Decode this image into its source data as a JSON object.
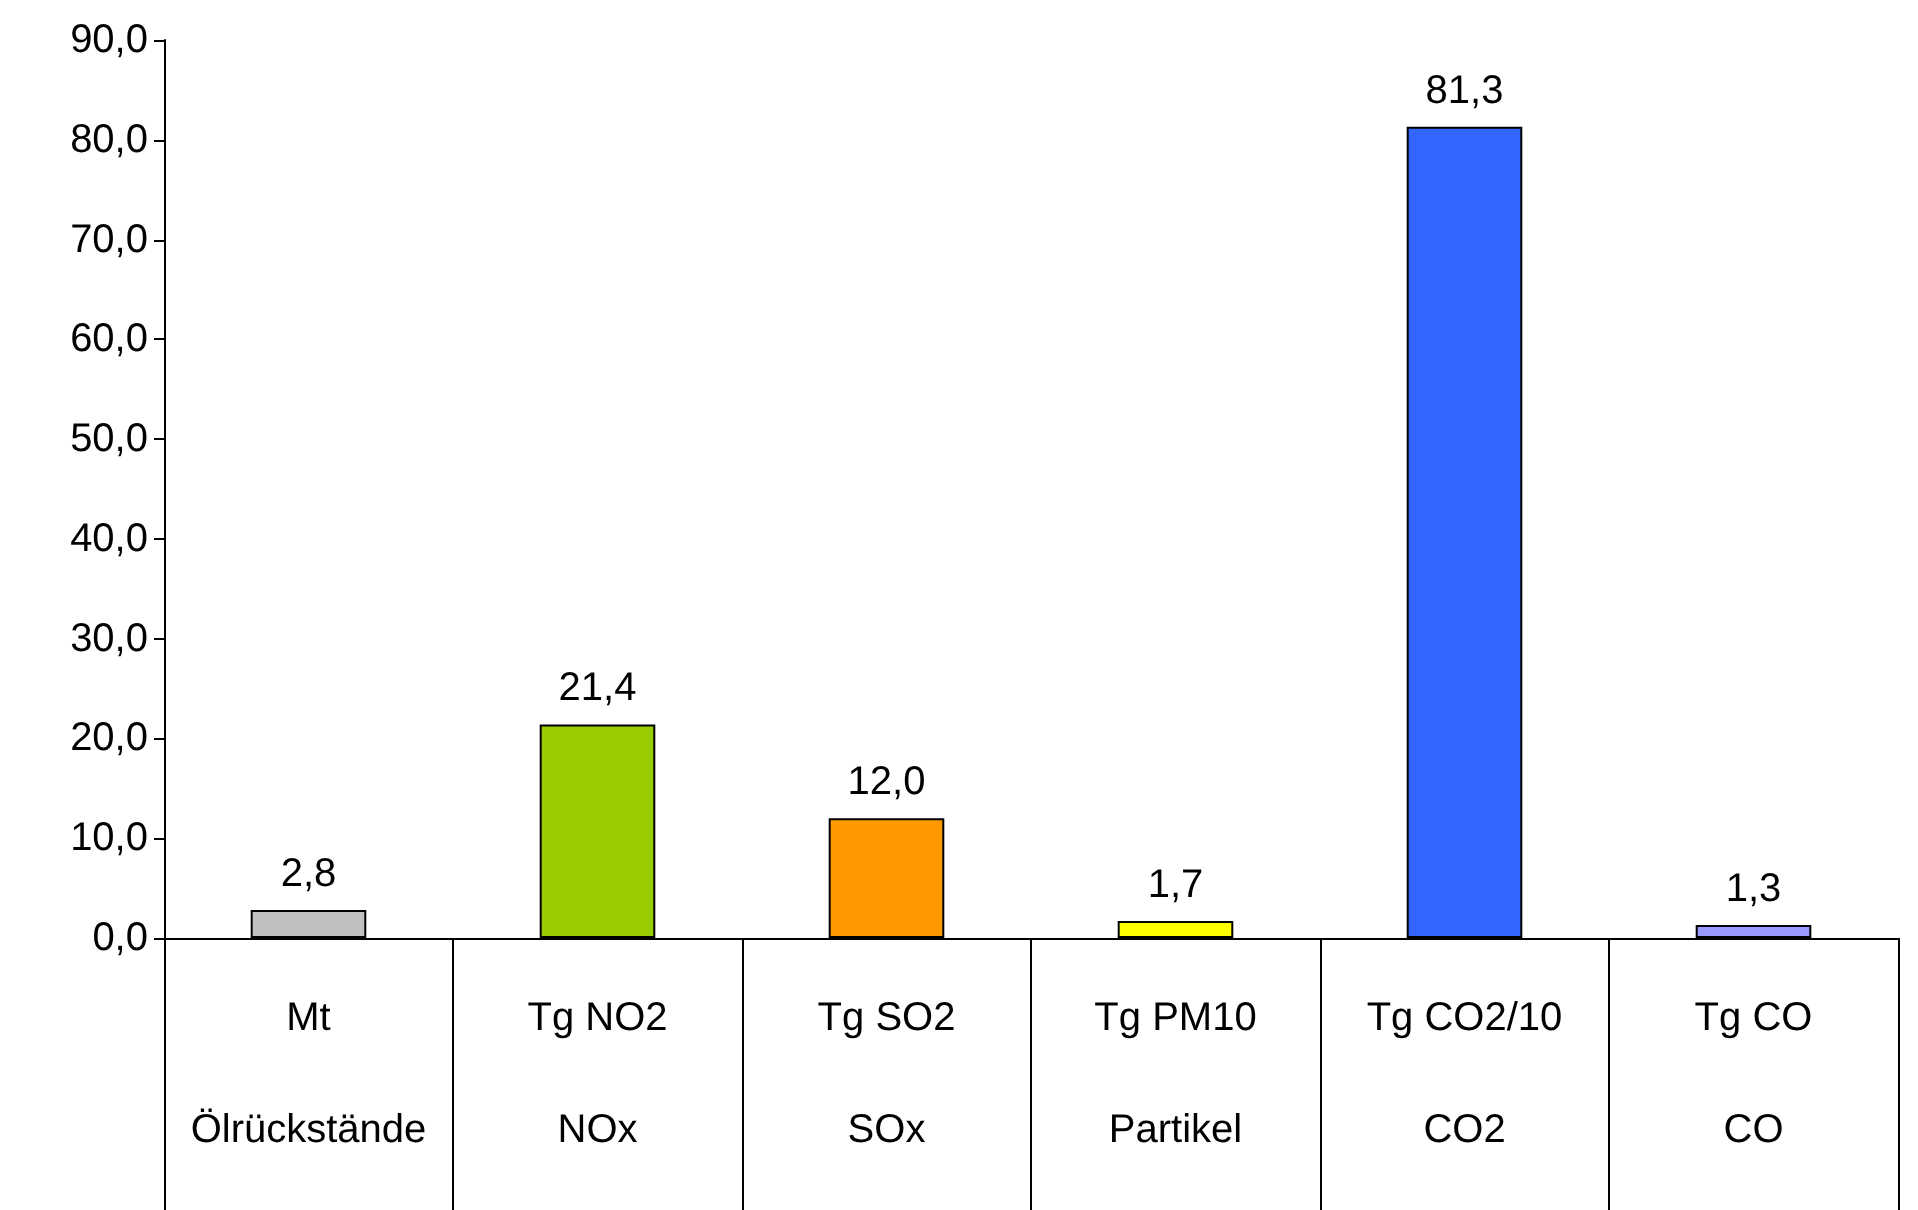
{
  "chart_data": {
    "type": "bar",
    "categories": [
      "Mt\nÖlrückstände",
      "Tg NO2\nNOx",
      "Tg SO2\nSOx",
      "Tg PM10\nPartikel",
      "Tg CO2/10\nCO2",
      "Tg CO\nCO"
    ],
    "values": [
      2.8,
      21.4,
      12.0,
      1.7,
      81.3,
      1.3
    ],
    "colors": [
      "#c0c0c0",
      "#99cc00",
      "#ff9900",
      "#ffff00",
      "#3366ff",
      "#9999ff"
    ],
    "value_labels": [
      "2,8",
      "21,4",
      "12,0",
      "1,7",
      "81,3",
      "1,3"
    ],
    "ylim": [
      0,
      90
    ],
    "yticks": [
      {
        "value": 0,
        "label": "0,0"
      },
      {
        "value": 10,
        "label": "10,0"
      },
      {
        "value": 20,
        "label": "20,0"
      },
      {
        "value": 30,
        "label": "30,0"
      },
      {
        "value": 40,
        "label": "40,0"
      },
      {
        "value": 50,
        "label": "50,0"
      },
      {
        "value": 60,
        "label": "60,0"
      },
      {
        "value": 70,
        "label": "70,0"
      },
      {
        "value": 80,
        "label": "80,0"
      },
      {
        "value": 90,
        "label": "90,0"
      }
    ],
    "grid": false
  }
}
